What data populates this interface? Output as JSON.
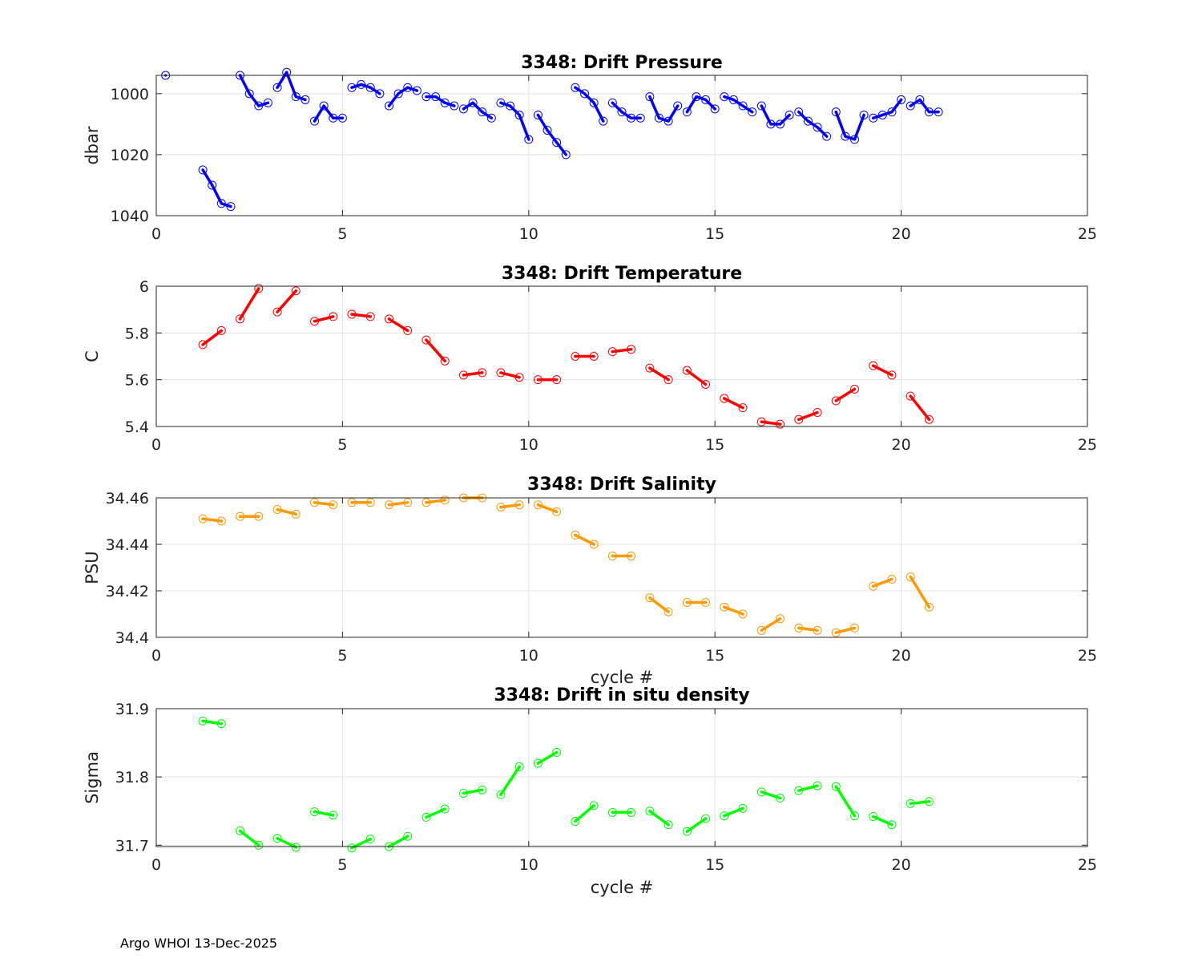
{
  "footer": "Argo WHOI 13-Dec-2025",
  "chart_data": [
    {
      "type": "line",
      "title": "3348: Drift Pressure",
      "xlabel": "",
      "ylabel": "dbar",
      "xlim": [
        0,
        25
      ],
      "ylim": [
        994,
        1040
      ],
      "y_reversed": true,
      "xticks": [
        0,
        5,
        10,
        15,
        20,
        25
      ],
      "yticks": [
        1000,
        1020,
        1040
      ],
      "color": "#0000ff",
      "grid": true,
      "segments": [
        [
          [
            0.25,
            994
          ]
        ],
        [
          [
            1.25,
            1025
          ],
          [
            1.5,
            1030
          ],
          [
            1.75,
            1036
          ],
          [
            2.0,
            1037
          ]
        ],
        [
          [
            2.25,
            994
          ],
          [
            2.5,
            1000
          ],
          [
            2.75,
            1004
          ],
          [
            3.0,
            1003
          ]
        ],
        [
          [
            3.25,
            998
          ],
          [
            3.5,
            993
          ],
          [
            3.75,
            1001
          ],
          [
            4.0,
            1002
          ]
        ],
        [
          [
            4.25,
            1009
          ],
          [
            4.5,
            1004
          ],
          [
            4.75,
            1008
          ],
          [
            5.0,
            1008
          ]
        ],
        [
          [
            5.25,
            998
          ],
          [
            5.5,
            997
          ],
          [
            5.75,
            998
          ],
          [
            6.0,
            1000
          ]
        ],
        [
          [
            6.25,
            1004
          ],
          [
            6.5,
            1000
          ],
          [
            6.75,
            998
          ],
          [
            7.0,
            999
          ]
        ],
        [
          [
            7.25,
            1001
          ],
          [
            7.5,
            1001
          ],
          [
            7.75,
            1003
          ],
          [
            8.0,
            1004
          ]
        ],
        [
          [
            8.25,
            1005
          ],
          [
            8.5,
            1003
          ],
          [
            8.75,
            1006
          ],
          [
            9.0,
            1008
          ]
        ],
        [
          [
            9.25,
            1003
          ],
          [
            9.5,
            1004
          ],
          [
            9.75,
            1007
          ],
          [
            10.0,
            1015
          ]
        ],
        [
          [
            10.25,
            1007
          ],
          [
            10.5,
            1012
          ],
          [
            10.75,
            1016
          ],
          [
            11.0,
            1020
          ]
        ],
        [
          [
            11.25,
            998
          ],
          [
            11.5,
            1000
          ],
          [
            11.75,
            1003
          ],
          [
            12.0,
            1009
          ]
        ],
        [
          [
            12.25,
            1003
          ],
          [
            12.5,
            1006
          ],
          [
            12.75,
            1008
          ],
          [
            13.0,
            1008
          ]
        ],
        [
          [
            13.25,
            1001
          ],
          [
            13.5,
            1008
          ],
          [
            13.75,
            1009
          ],
          [
            14.0,
            1004
          ]
        ],
        [
          [
            14.25,
            1006
          ],
          [
            14.5,
            1001
          ],
          [
            14.75,
            1002
          ],
          [
            15.0,
            1005
          ]
        ],
        [
          [
            15.25,
            1001
          ],
          [
            15.5,
            1002
          ],
          [
            15.75,
            1004
          ],
          [
            16.0,
            1006
          ]
        ],
        [
          [
            16.25,
            1004
          ],
          [
            16.5,
            1010
          ],
          [
            16.75,
            1010
          ],
          [
            17.0,
            1007
          ]
        ],
        [
          [
            17.25,
            1006
          ],
          [
            17.5,
            1009
          ],
          [
            17.75,
            1011
          ],
          [
            18.0,
            1014
          ]
        ],
        [
          [
            18.25,
            1006
          ],
          [
            18.5,
            1014
          ],
          [
            18.75,
            1015
          ],
          [
            19.0,
            1007
          ]
        ],
        [
          [
            19.25,
            1008
          ],
          [
            19.5,
            1007
          ],
          [
            19.75,
            1006
          ],
          [
            20.0,
            1002
          ]
        ],
        [
          [
            20.25,
            1004
          ],
          [
            20.5,
            1002
          ],
          [
            20.75,
            1006
          ],
          [
            21.0,
            1006
          ]
        ]
      ]
    },
    {
      "type": "line",
      "title": "3348: Drift Temperature",
      "xlabel": "",
      "ylabel": "C",
      "xlim": [
        0,
        25
      ],
      "ylim": [
        5.4,
        6.0
      ],
      "y_reversed": false,
      "xticks": [
        0,
        5,
        10,
        15,
        20,
        25
      ],
      "yticks": [
        5.4,
        5.6,
        5.8,
        6
      ],
      "color": "#ff0000",
      "grid": true,
      "segments": [
        [
          [
            1.25,
            5.75
          ],
          [
            1.75,
            5.81
          ]
        ],
        [
          [
            2.25,
            5.86
          ],
          [
            2.75,
            5.99
          ]
        ],
        [
          [
            3.25,
            5.89
          ],
          [
            3.75,
            5.98
          ]
        ],
        [
          [
            4.25,
            5.85
          ],
          [
            4.75,
            5.87
          ]
        ],
        [
          [
            5.25,
            5.88
          ],
          [
            5.75,
            5.87
          ]
        ],
        [
          [
            6.25,
            5.86
          ],
          [
            6.75,
            5.81
          ]
        ],
        [
          [
            7.25,
            5.77
          ],
          [
            7.75,
            5.68
          ]
        ],
        [
          [
            8.25,
            5.62
          ],
          [
            8.75,
            5.63
          ]
        ],
        [
          [
            9.25,
            5.63
          ],
          [
            9.75,
            5.61
          ]
        ],
        [
          [
            10.25,
            5.6
          ],
          [
            10.75,
            5.6
          ]
        ],
        [
          [
            11.25,
            5.7
          ],
          [
            11.75,
            5.7
          ]
        ],
        [
          [
            12.25,
            5.72
          ],
          [
            12.75,
            5.73
          ]
        ],
        [
          [
            13.25,
            5.65
          ],
          [
            13.75,
            5.6
          ]
        ],
        [
          [
            14.25,
            5.64
          ],
          [
            14.75,
            5.58
          ]
        ],
        [
          [
            15.25,
            5.52
          ],
          [
            15.75,
            5.48
          ]
        ],
        [
          [
            16.25,
            5.42
          ],
          [
            16.75,
            5.41
          ]
        ],
        [
          [
            17.25,
            5.43
          ],
          [
            17.75,
            5.46
          ]
        ],
        [
          [
            18.25,
            5.51
          ],
          [
            18.75,
            5.56
          ]
        ],
        [
          [
            19.25,
            5.66
          ],
          [
            19.75,
            5.62
          ]
        ],
        [
          [
            20.25,
            5.53
          ],
          [
            20.75,
            5.43
          ]
        ]
      ]
    },
    {
      "type": "line",
      "title": "3348: Drift Salinity",
      "xlabel": "cycle #",
      "ylabel": "PSU",
      "xlim": [
        0,
        25
      ],
      "ylim": [
        34.4,
        34.46
      ],
      "y_reversed": false,
      "xticks": [
        0,
        5,
        10,
        15,
        20,
        25
      ],
      "yticks": [
        34.4,
        34.42,
        34.44,
        34.46
      ],
      "color": "#ff9900",
      "grid": true,
      "segments": [
        [
          [
            1.25,
            34.451
          ],
          [
            1.75,
            34.45
          ]
        ],
        [
          [
            2.25,
            34.452
          ],
          [
            2.75,
            34.452
          ]
        ],
        [
          [
            3.25,
            34.455
          ],
          [
            3.75,
            34.453
          ]
        ],
        [
          [
            4.25,
            34.458
          ],
          [
            4.75,
            34.457
          ]
        ],
        [
          [
            5.25,
            34.458
          ],
          [
            5.75,
            34.458
          ]
        ],
        [
          [
            6.25,
            34.457
          ],
          [
            6.75,
            34.458
          ]
        ],
        [
          [
            7.25,
            34.458
          ],
          [
            7.75,
            34.459
          ]
        ],
        [
          [
            8.25,
            34.46
          ],
          [
            8.75,
            34.46
          ]
        ],
        [
          [
            9.25,
            34.456
          ],
          [
            9.75,
            34.457
          ]
        ],
        [
          [
            10.25,
            34.457
          ],
          [
            10.75,
            34.454
          ]
        ],
        [
          [
            11.25,
            34.444
          ],
          [
            11.75,
            34.44
          ]
        ],
        [
          [
            12.25,
            34.435
          ],
          [
            12.75,
            34.435
          ]
        ],
        [
          [
            13.25,
            34.417
          ],
          [
            13.75,
            34.411
          ]
        ],
        [
          [
            14.25,
            34.415
          ],
          [
            14.75,
            34.415
          ]
        ],
        [
          [
            15.25,
            34.413
          ],
          [
            15.75,
            34.41
          ]
        ],
        [
          [
            16.25,
            34.403
          ],
          [
            16.75,
            34.408
          ]
        ],
        [
          [
            17.25,
            34.404
          ],
          [
            17.75,
            34.403
          ]
        ],
        [
          [
            18.25,
            34.402
          ],
          [
            18.75,
            34.404
          ]
        ],
        [
          [
            19.25,
            34.422
          ],
          [
            19.75,
            34.425
          ]
        ],
        [
          [
            20.25,
            34.426
          ],
          [
            20.75,
            34.413
          ]
        ]
      ]
    },
    {
      "type": "line",
      "title": "3348: Drift in situ density",
      "xlabel": "cycle #",
      "ylabel": "Sigma",
      "xlim": [
        0,
        25
      ],
      "ylim": [
        31.698,
        31.9
      ],
      "y_reversed": false,
      "xticks": [
        0,
        5,
        10,
        15,
        20,
        25
      ],
      "yticks": [
        31.7,
        31.8,
        31.9
      ],
      "ytick_labels": [
        "31.7",
        "31.8",
        "31.9"
      ],
      "color": "#00ff00",
      "grid": true,
      "segments": [
        [
          [
            1.25,
            31.882
          ],
          [
            1.75,
            31.878
          ]
        ],
        [
          [
            2.25,
            31.721
          ],
          [
            2.75,
            31.7
          ]
        ],
        [
          [
            3.25,
            31.71
          ],
          [
            3.75,
            31.697
          ]
        ],
        [
          [
            4.25,
            31.749
          ],
          [
            4.75,
            31.744
          ]
        ],
        [
          [
            5.25,
            31.696
          ],
          [
            5.75,
            31.709
          ]
        ],
        [
          [
            6.25,
            31.698
          ],
          [
            6.75,
            31.713
          ]
        ],
        [
          [
            7.25,
            31.741
          ],
          [
            7.75,
            31.753
          ]
        ],
        [
          [
            8.25,
            31.776
          ],
          [
            8.75,
            31.781
          ]
        ],
        [
          [
            9.25,
            31.774
          ],
          [
            9.75,
            31.815
          ]
        ],
        [
          [
            10.25,
            31.82
          ],
          [
            10.75,
            31.836
          ]
        ],
        [
          [
            11.25,
            31.735
          ],
          [
            11.75,
            31.758
          ]
        ],
        [
          [
            12.25,
            31.748
          ],
          [
            12.75,
            31.748
          ]
        ],
        [
          [
            13.25,
            31.75
          ],
          [
            13.75,
            31.73
          ]
        ],
        [
          [
            14.25,
            31.72
          ],
          [
            14.75,
            31.739
          ]
        ],
        [
          [
            15.25,
            31.743
          ],
          [
            15.75,
            31.754
          ]
        ],
        [
          [
            16.25,
            31.778
          ],
          [
            16.75,
            31.769
          ]
        ],
        [
          [
            17.25,
            31.78
          ],
          [
            17.75,
            31.787
          ]
        ],
        [
          [
            18.25,
            31.786
          ],
          [
            18.75,
            31.743
          ]
        ],
        [
          [
            19.25,
            31.742
          ],
          [
            19.75,
            31.73
          ]
        ],
        [
          [
            20.25,
            31.761
          ],
          [
            20.75,
            31.764
          ]
        ]
      ]
    }
  ]
}
